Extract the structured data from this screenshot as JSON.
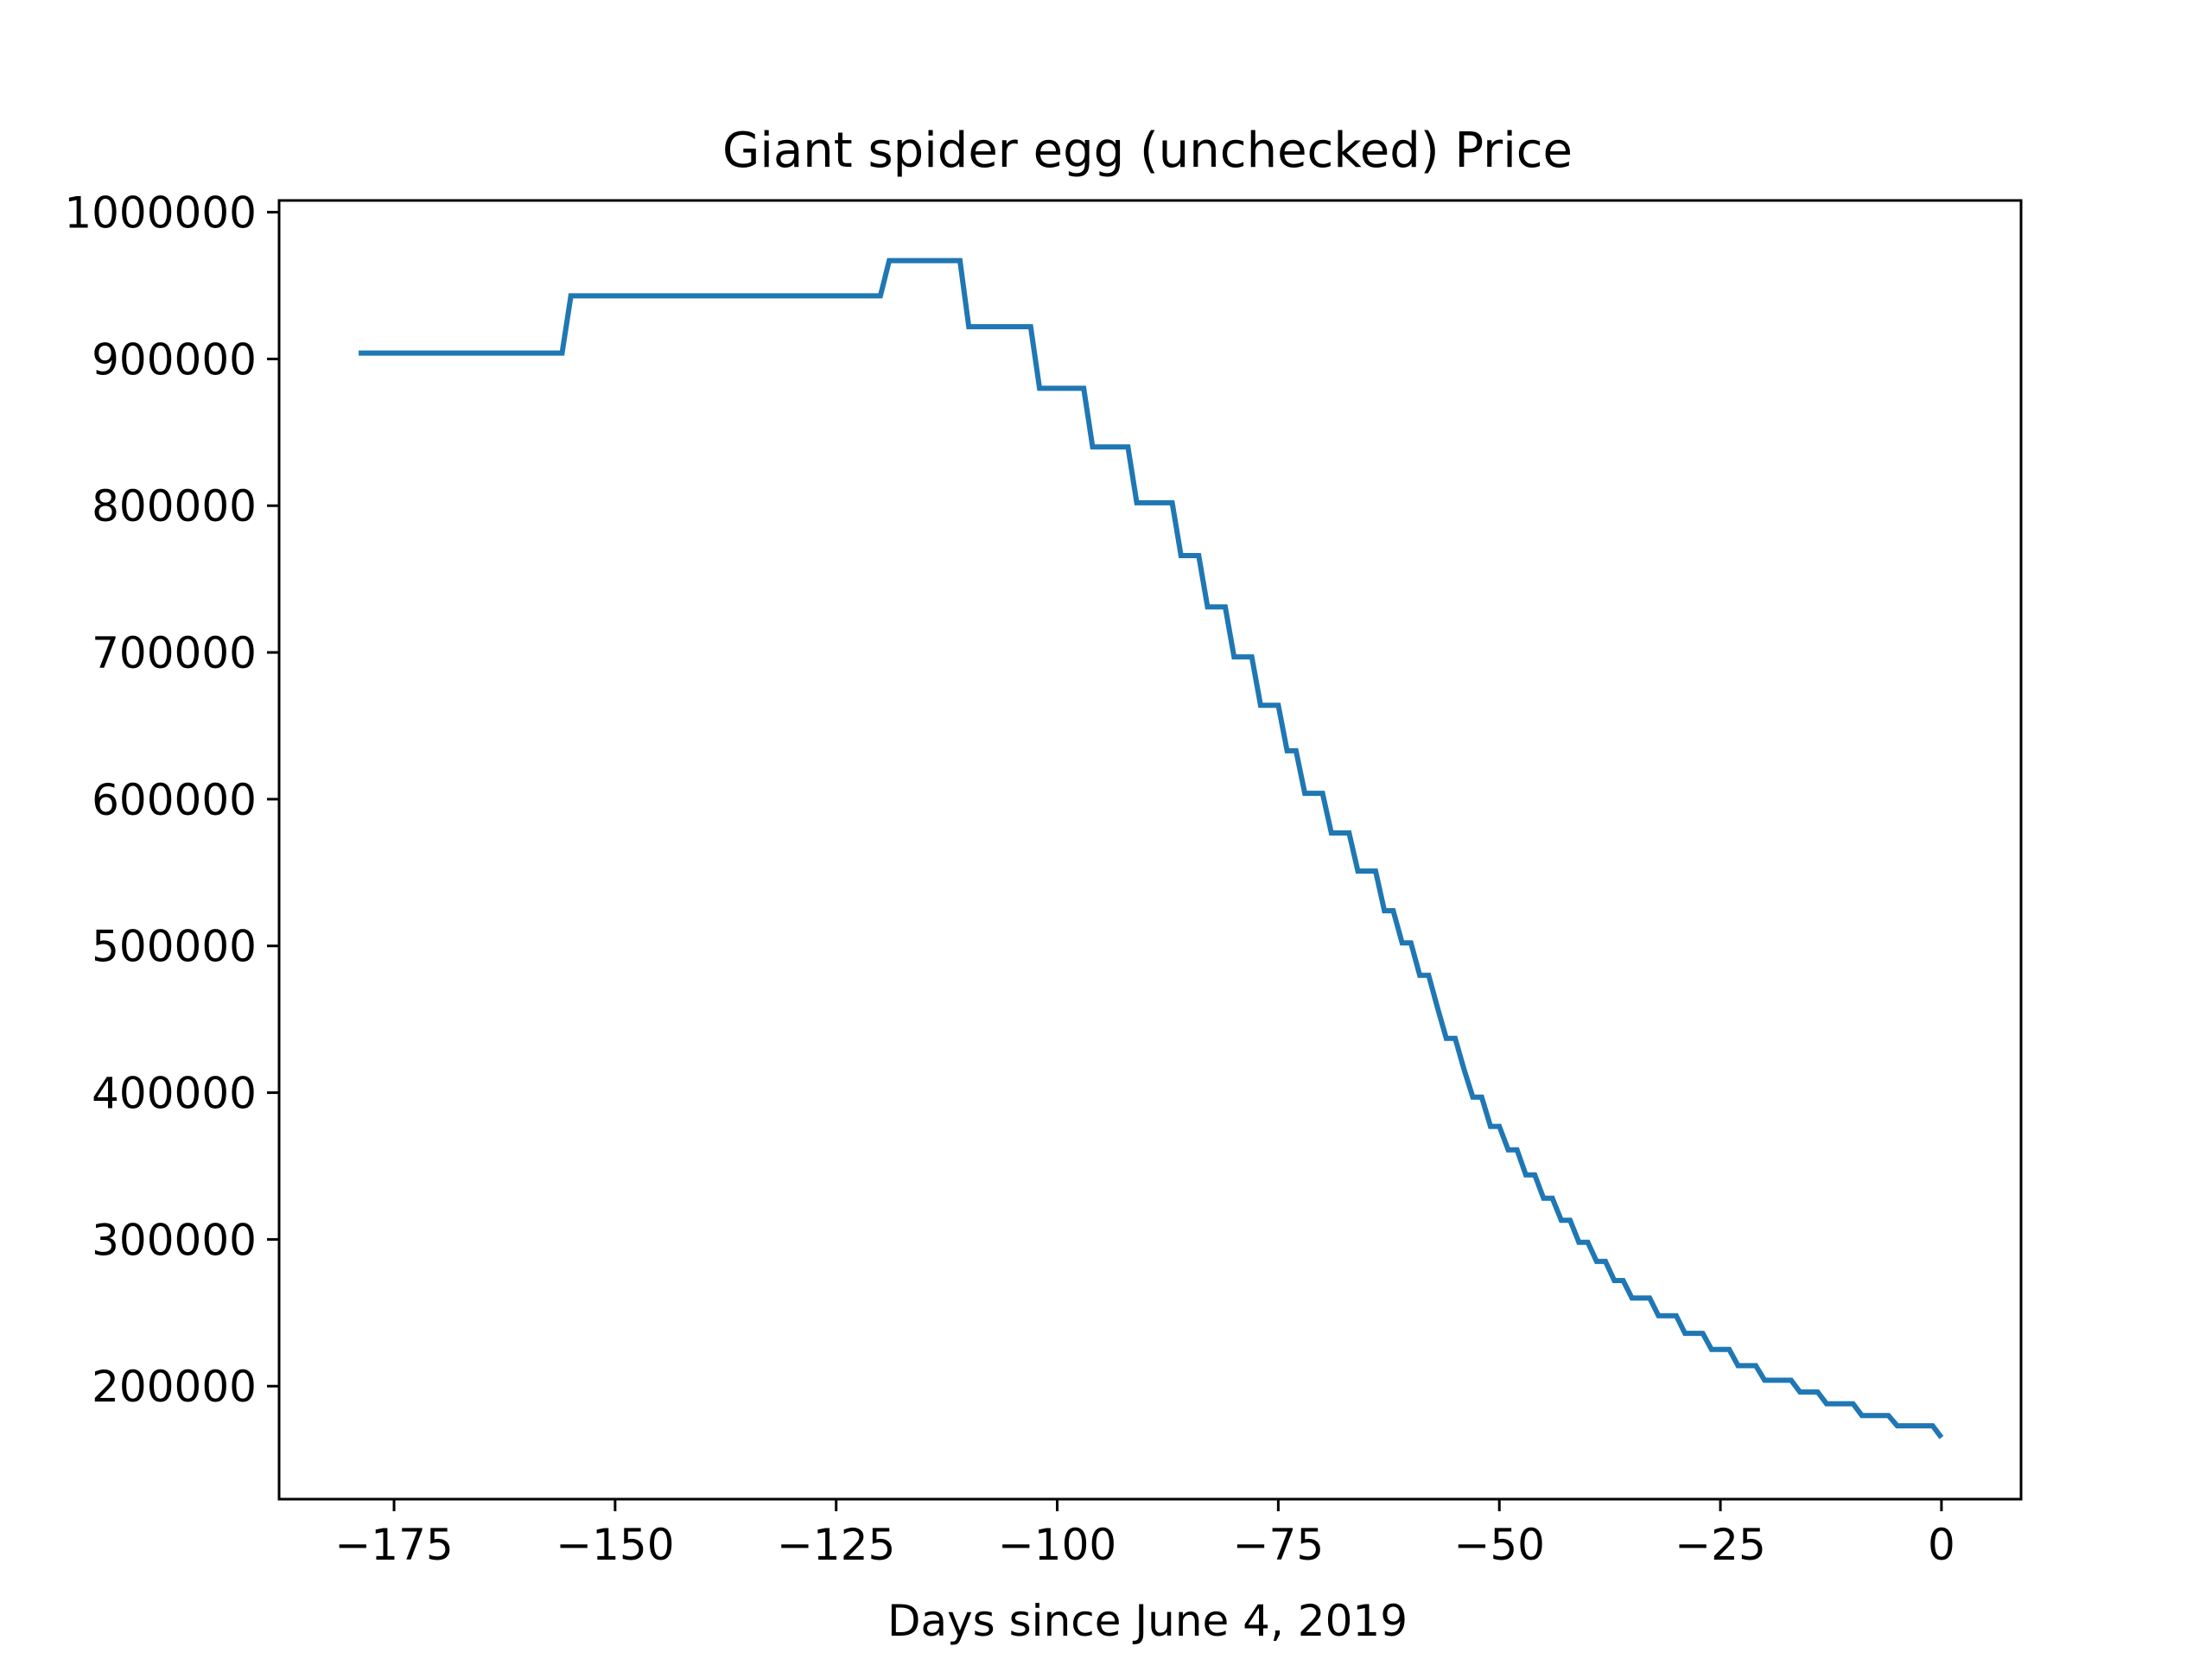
{
  "chart_data": {
    "type": "line",
    "title": "Giant spider egg (unchecked) Price",
    "xlabel": "Days since June 4, 2019",
    "ylabel": "",
    "xlim": [
      -188,
      9
    ],
    "ylim": [
      123000,
      1008000
    ],
    "x_ticks": [
      -175,
      -150,
      -125,
      -100,
      -75,
      -50,
      -25,
      0
    ],
    "x_tick_labels": [
      "−175",
      "−150",
      "−125",
      "−100",
      "−75",
      "−50",
      "−25",
      "0"
    ],
    "y_ticks": [
      200000,
      300000,
      400000,
      500000,
      600000,
      700000,
      800000,
      900000,
      1000000
    ],
    "y_tick_labels": [
      "200000",
      "300000",
      "400000",
      "500000",
      "600000",
      "700000",
      "800000",
      "900000",
      "1000000"
    ],
    "grid": false,
    "legend": "none",
    "series": [
      {
        "color": "#1f77b4",
        "x": [
          -179,
          -156,
          -155,
          -120,
          -119,
          -111,
          -110,
          -103,
          -102,
          -97,
          -96,
          -92,
          -91,
          -87,
          -86,
          -84,
          -83,
          -81,
          -80,
          -78,
          -77,
          -75,
          -74,
          -73,
          -72,
          -70,
          -69,
          -67,
          -66,
          -64,
          -63,
          -62,
          -61,
          -60,
          -59,
          -58,
          -57,
          -56,
          -55,
          -54,
          -53,
          -52,
          -51,
          -50,
          -49,
          -48,
          -47,
          -46,
          -45,
          -44,
          -43,
          -42,
          -41,
          -40,
          -39,
          -38,
          -37,
          -36,
          -35,
          -34,
          -33,
          -32,
          -31,
          -30,
          -29,
          -28,
          -27,
          -26,
          -25,
          -24,
          -23,
          -22,
          -21,
          -20,
          -19,
          -18,
          -17,
          -16,
          -15,
          -14,
          -13,
          -12,
          -11,
          -10,
          -9,
          -8,
          -7,
          -6,
          -5,
          -4,
          -3,
          -2,
          -1,
          0
        ],
        "y": [
          904000,
          904000,
          943000,
          943000,
          967000,
          967000,
          922000,
          922000,
          880000,
          880000,
          840000,
          840000,
          802000,
          802000,
          766000,
          766000,
          731000,
          731000,
          697000,
          697000,
          664000,
          664000,
          633000,
          633000,
          604000,
          604000,
          577000,
          577000,
          551000,
          551000,
          524000,
          524000,
          502000,
          502000,
          480000,
          480000,
          458000,
          437000,
          437000,
          416000,
          397000,
          397000,
          377000,
          377000,
          361000,
          361000,
          344000,
          344000,
          328000,
          328000,
          313000,
          313000,
          298000,
          298000,
          285000,
          285000,
          272000,
          272000,
          260000,
          260000,
          260000,
          248000,
          248000,
          248000,
          236000,
          236000,
          236000,
          225000,
          225000,
          225000,
          214000,
          214000,
          214000,
          204000,
          204000,
          204000,
          204000,
          196000,
          196000,
          196000,
          188000,
          188000,
          188000,
          188000,
          180000,
          180000,
          180000,
          180000,
          173000,
          173000,
          173000,
          173000,
          173000,
          165000
        ]
      }
    ]
  }
}
